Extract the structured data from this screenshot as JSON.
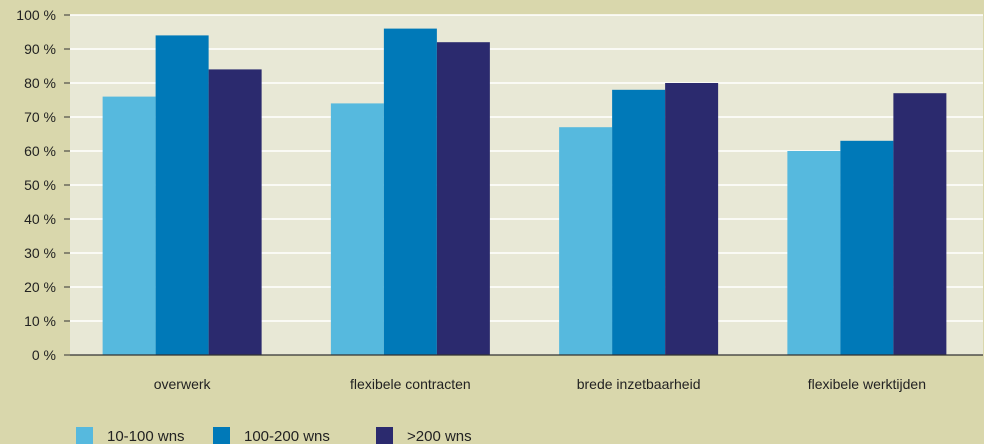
{
  "chart_data": {
    "type": "bar",
    "title": "",
    "xlabel": "",
    "ylabel": "",
    "categories": [
      "overwerk",
      "flexibele contracten",
      "brede inzetbaarheid",
      "flexibele werktijden"
    ],
    "series": [
      {
        "name": "10-100 wns",
        "color": "#56b9de",
        "values": [
          76,
          74,
          67,
          60
        ]
      },
      {
        "name": "100-200 wns",
        "color": "#0079b8",
        "values": [
          94,
          96,
          78,
          63
        ]
      },
      {
        "name": ">200 wns",
        "color": "#2b2a6e",
        "values": [
          84,
          92,
          80,
          77
        ]
      }
    ],
    "ylim": [
      0,
      100
    ],
    "yticks": [
      "0 %",
      "10 %",
      "20 %",
      "30 %",
      "40 %",
      "50 %",
      "60 %",
      "70 %",
      "80 %",
      "90 %",
      "100 %"
    ],
    "grid": true,
    "legend": "bottom-left"
  },
  "colors": {
    "page_background": "#d9d7ac",
    "plot_background": "#e8e8d6",
    "gridline": "#ffffff",
    "axis": "#333333"
  }
}
